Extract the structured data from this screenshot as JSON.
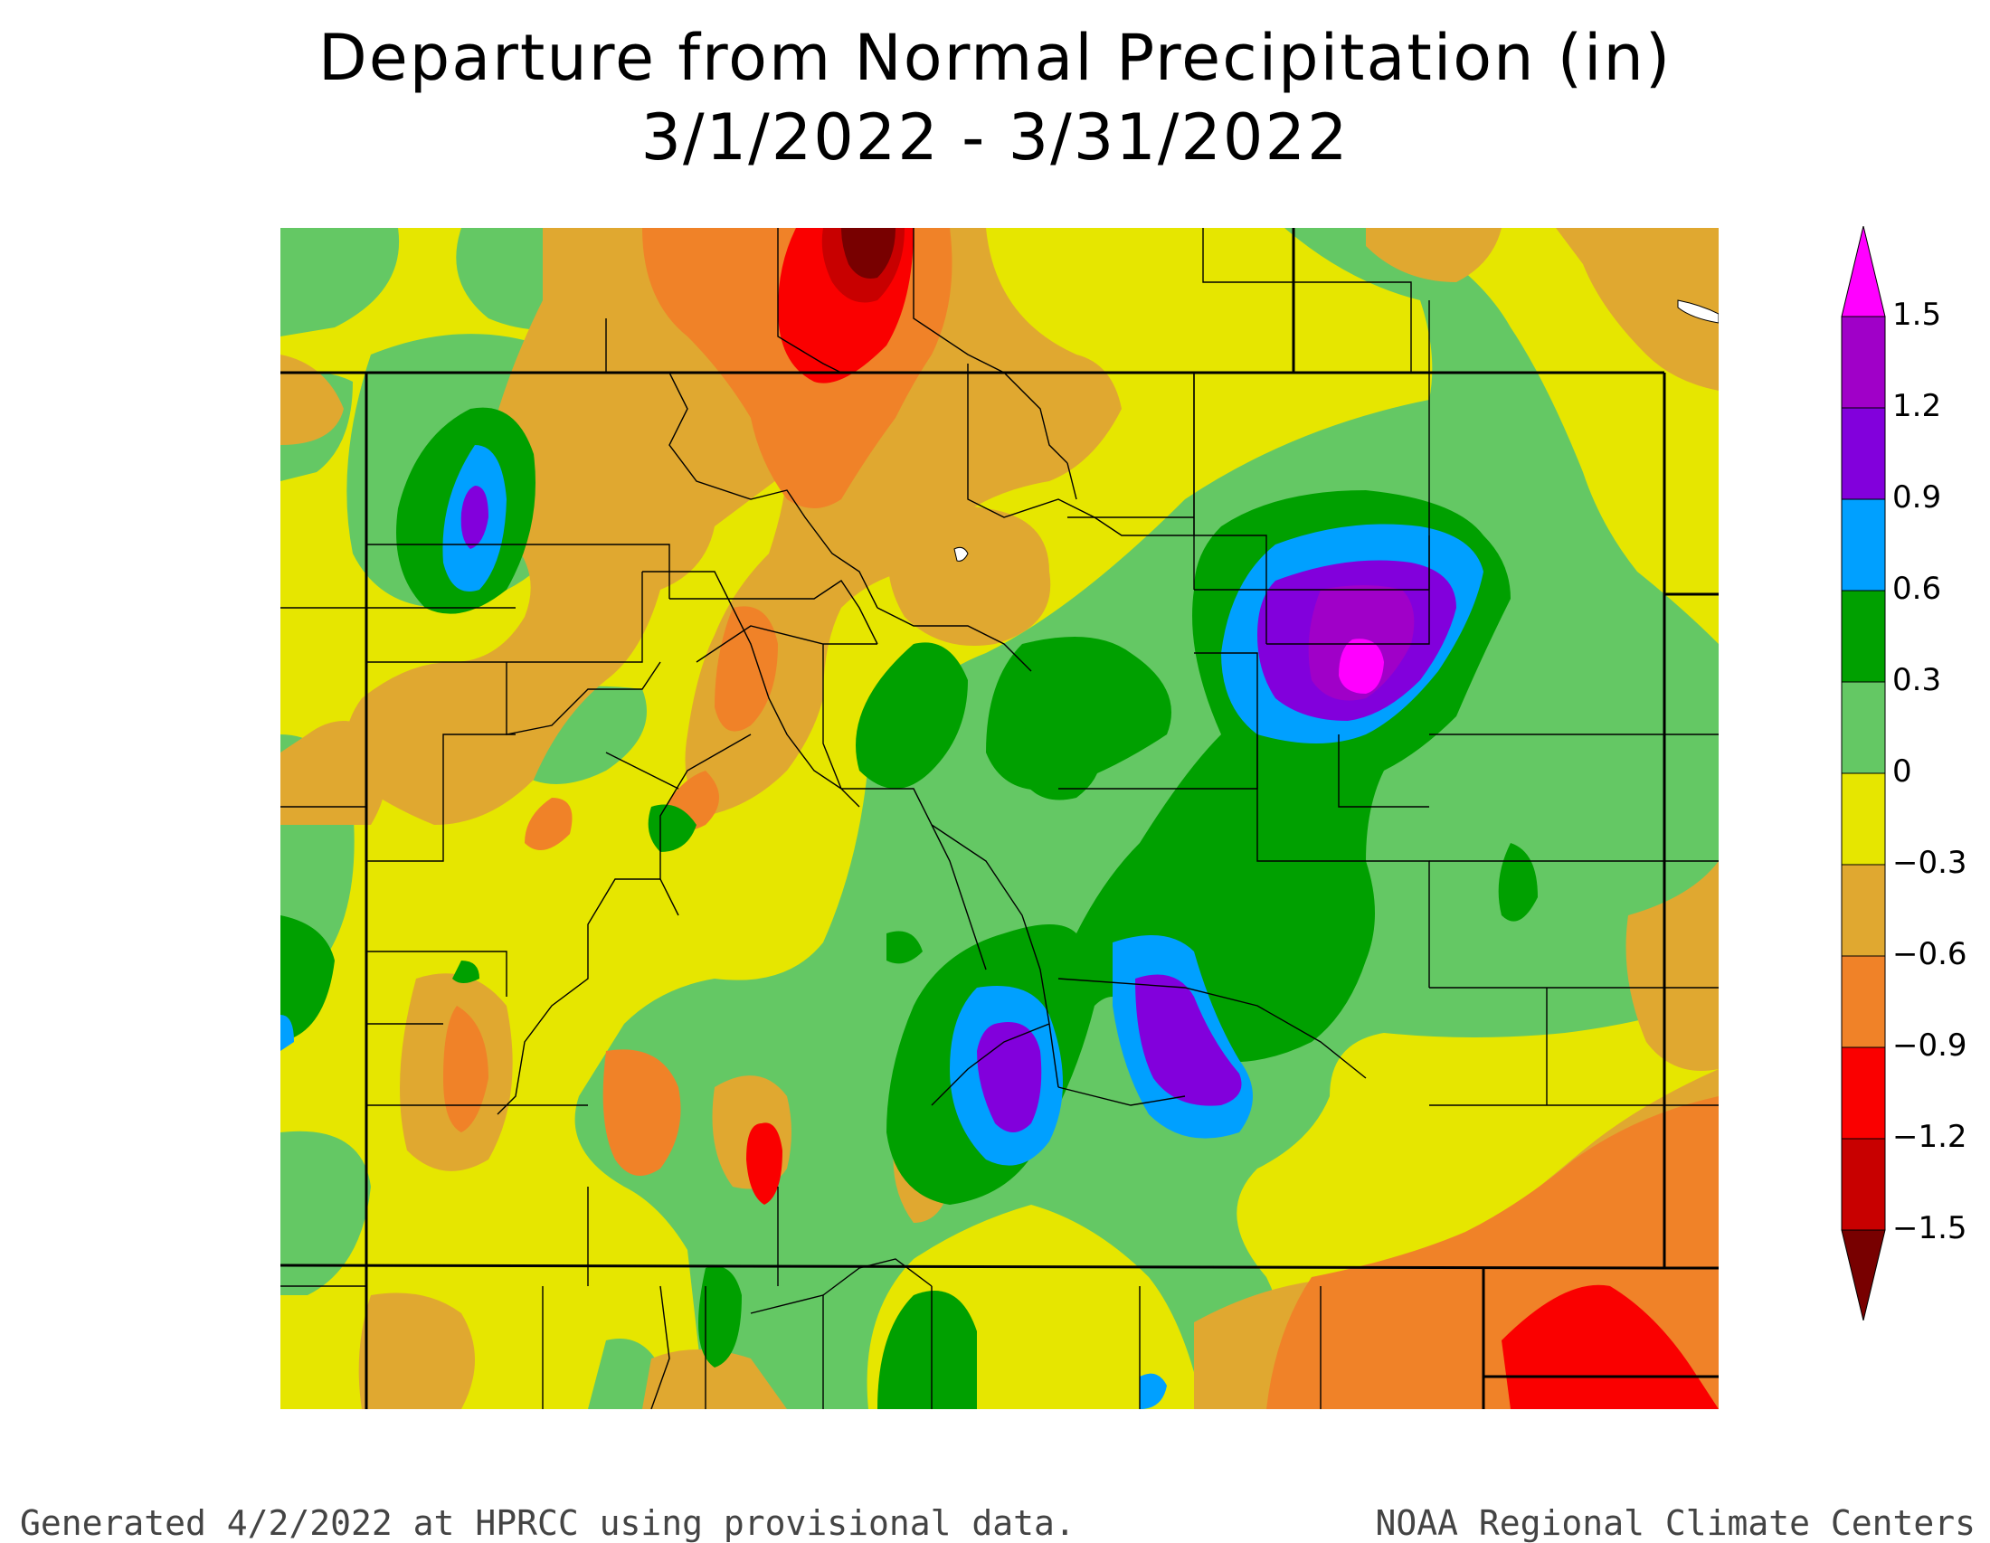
{
  "title": {
    "line1": "Departure from Normal Precipitation (in)",
    "line2": "3/1/2022 - 3/31/2022"
  },
  "legend": {
    "labels": [
      "1.5",
      "1.2",
      "0.9",
      "0.6",
      "0.3",
      "0",
      "−0.3",
      "−0.6",
      "−0.9",
      "−1.2",
      "−1.5"
    ],
    "bins": [
      {
        "range": "> 1.5",
        "color": "#ff00ff"
      },
      {
        "range": "1.2 to 1.5",
        "color": "#a000c8"
      },
      {
        "range": "0.9 to 1.2",
        "color": "#8200dc"
      },
      {
        "range": "0.6 to 0.9",
        "color": "#00a0ff"
      },
      {
        "range": "0.3 to 0.6",
        "color": "#00a000"
      },
      {
        "range": "0 to 0.3",
        "color": "#64c864"
      },
      {
        "range": "-0.3 to 0",
        "color": "#e6e600"
      },
      {
        "range": "-0.6 to -0.3",
        "color": "#e0a830"
      },
      {
        "range": "-0.9 to -0.6",
        "color": "#f08228"
      },
      {
        "range": "-1.2 to -0.9",
        "color": "#fa0000"
      },
      {
        "range": "-1.5 to -1.2",
        "color": "#c80000"
      },
      {
        "range": "< -1.5",
        "color": "#780000"
      }
    ]
  },
  "footer": {
    "left": "Generated 4/2/2022 at HPRCC using provisional data.",
    "right": "NOAA Regional Climate Centers"
  }
}
